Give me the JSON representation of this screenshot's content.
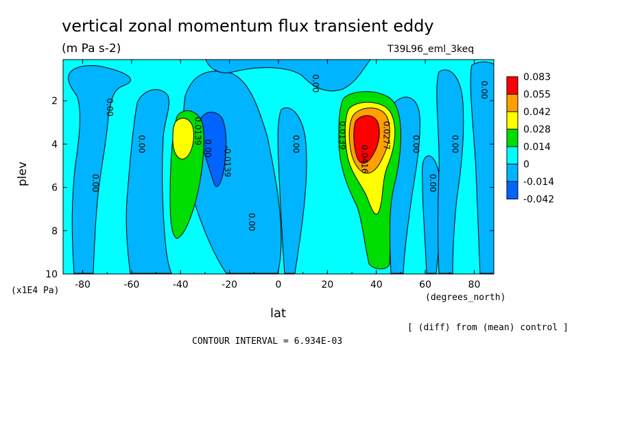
{
  "chart_data": {
    "type": "heatmap",
    "title": "vertical zonal momentum flux transient eddy",
    "units": "(m Pa s-2)",
    "run_label": "T39L96_eml_3keq",
    "xlabel": "lat",
    "x_units": "(degrees_north)",
    "ylabel": "plev",
    "y_units": "(x1E4 Pa)",
    "xlim": [
      -88,
      88
    ],
    "ylim": [
      10,
      0.1
    ],
    "x_ticks": [
      "-80",
      "-60",
      "-40",
      "-20",
      "0",
      "20",
      "40",
      "60",
      "80"
    ],
    "y_ticks": [
      "2",
      "4",
      "6",
      "8",
      "10"
    ],
    "colorbar": {
      "labels": [
        "0.083",
        "0.055",
        "0.042",
        "0.028",
        "0.014",
        "0",
        "-0.014",
        "-0.042"
      ],
      "colors": [
        "#ff0000",
        "#ff9f00",
        "#ffff00",
        "#00dd00",
        "#00ffff",
        "#00b4ff",
        "#0064ff"
      ]
    },
    "contour_labels": [
      {
        "text": "0.00",
        "lat": -70,
        "plev": 2.3
      },
      {
        "text": "0.00",
        "lat": -57,
        "plev": 4.0
      },
      {
        "text": "0.00",
        "lat": -76,
        "plev": 5.8
      },
      {
        "text": "0.0139",
        "lat": -34,
        "plev": 3.4
      },
      {
        "text": "0.00",
        "lat": -30,
        "plev": 4.2
      },
      {
        "text": "-0.0139",
        "lat": -22,
        "plev": 4.8
      },
      {
        "text": "0.00",
        "lat": -12,
        "plev": 7.6
      },
      {
        "text": "0.00",
        "lat": 6,
        "plev": 4.0
      },
      {
        "text": "0.00",
        "lat": 14,
        "plev": 1.2
      },
      {
        "text": "0.0139",
        "lat": 25,
        "plev": 3.6
      },
      {
        "text": "0.0416",
        "lat": 34,
        "plev": 4.7
      },
      {
        "text": "0.0277",
        "lat": 43,
        "plev": 3.6
      },
      {
        "text": "0.00",
        "lat": 55,
        "plev": 4.0
      },
      {
        "text": "0.00",
        "lat": 62,
        "plev": 5.8
      },
      {
        "text": "0.00",
        "lat": 71,
        "plev": 4.0
      },
      {
        "text": "0.00",
        "lat": 83,
        "plev": 1.5
      }
    ]
  },
  "footer": {
    "diff_note": "[ (diff) from (mean) control ]",
    "contour_interval": "CONTOUR INTERVAL = 6.934E-03"
  }
}
